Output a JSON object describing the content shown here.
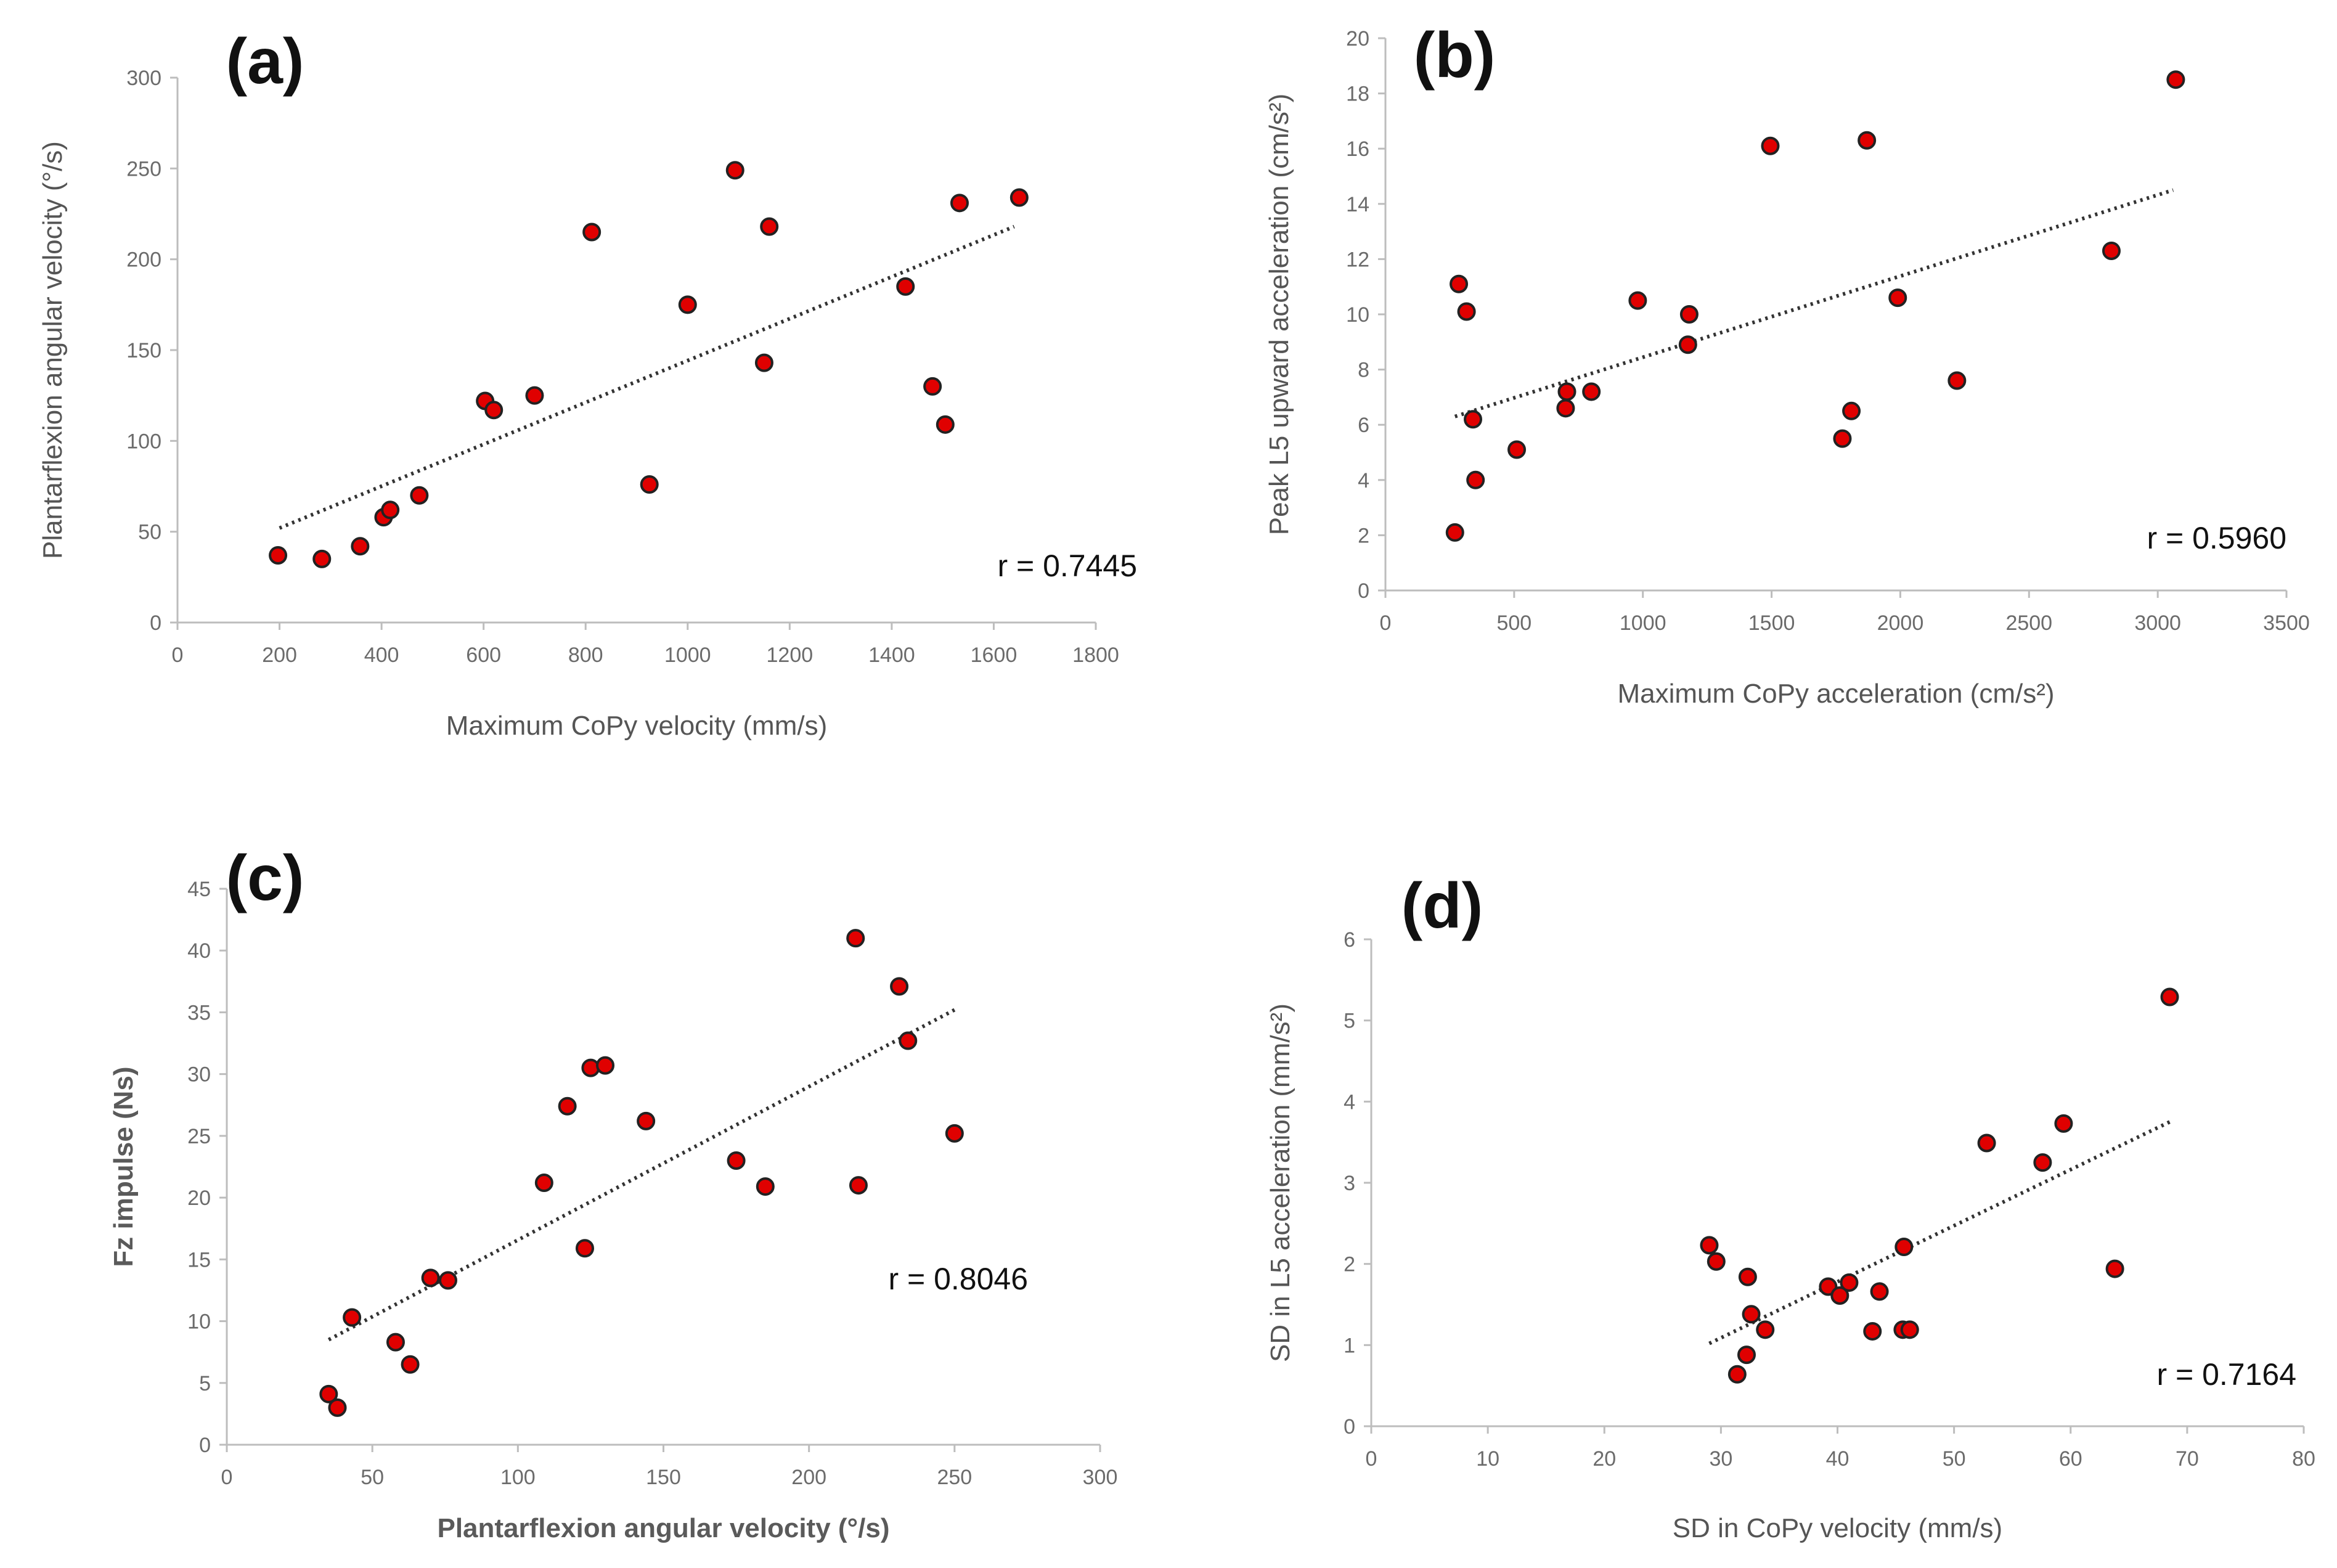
{
  "chart_data": [
    {
      "type": "scatter",
      "panel_label": "(a)",
      "xlabel": "Maximum CoPy velocity (mm/s)",
      "ylabel": "Plantarflexion angular velocity (°/s)",
      "xlim": [
        0,
        1800
      ],
      "ylim": [
        0,
        300
      ],
      "xticks": [
        0,
        200,
        400,
        600,
        800,
        1000,
        1200,
        1400,
        1600,
        1800
      ],
      "yticks": [
        0,
        50,
        100,
        150,
        200,
        250,
        300
      ],
      "annotation": "r = 0.7445",
      "trendline": {
        "x": [
          200,
          1640
        ],
        "y": [
          52,
          218
        ]
      },
      "points": [
        [
          197,
          37
        ],
        [
          283,
          35
        ],
        [
          358,
          42
        ],
        [
          404,
          58
        ],
        [
          417,
          62
        ],
        [
          474,
          70
        ],
        [
          603,
          122
        ],
        [
          620,
          117
        ],
        [
          700,
          125
        ],
        [
          812,
          215
        ],
        [
          925,
          76
        ],
        [
          1000,
          175
        ],
        [
          1093,
          249
        ],
        [
          1150,
          143
        ],
        [
          1160,
          218
        ],
        [
          1427,
          185
        ],
        [
          1480,
          130
        ],
        [
          1505,
          109
        ],
        [
          1533,
          231
        ],
        [
          1650,
          234
        ]
      ]
    },
    {
      "type": "scatter",
      "panel_label": "(b)",
      "xlabel": "Maximum CoPy acceleration (cm/s²)",
      "ylabel": "Peak L5 upward acceleration (cm/s²)",
      "xlim": [
        0,
        3500
      ],
      "ylim": [
        0,
        20
      ],
      "xticks": [
        0,
        500,
        1000,
        1500,
        2000,
        2500,
        3000,
        3500
      ],
      "yticks": [
        0,
        2,
        4,
        6,
        8,
        10,
        12,
        14,
        16,
        18,
        20
      ],
      "annotation": "r = 0.5960",
      "trendline": {
        "x": [
          270,
          3060
        ],
        "y": [
          6.3,
          14.5
        ]
      },
      "points": [
        [
          270,
          2.1
        ],
        [
          285,
          11.1
        ],
        [
          315,
          10.1
        ],
        [
          340,
          6.2
        ],
        [
          350,
          4.0
        ],
        [
          510,
          5.1
        ],
        [
          700,
          6.6
        ],
        [
          705,
          7.2
        ],
        [
          800,
          7.2
        ],
        [
          980,
          10.5
        ],
        [
          1175,
          8.9
        ],
        [
          1180,
          10.0
        ],
        [
          1495,
          16.1
        ],
        [
          1775,
          5.5
        ],
        [
          1810,
          6.5
        ],
        [
          1870,
          16.3
        ],
        [
          1990,
          10.6
        ],
        [
          2220,
          7.6
        ],
        [
          2820,
          12.3
        ],
        [
          3070,
          18.5
        ]
      ]
    },
    {
      "type": "scatter",
      "panel_label": "(c)",
      "xlabel": "Plantarflexion angular velocity (°/s)",
      "ylabel": "Fz impulse (Ns)",
      "xlim": [
        0,
        300
      ],
      "ylim": [
        0,
        45
      ],
      "xticks": [
        0,
        50,
        100,
        150,
        200,
        250,
        300
      ],
      "yticks": [
        0,
        5,
        10,
        15,
        20,
        25,
        30,
        35,
        40,
        45
      ],
      "annotation": "r = 0.8046",
      "trendline": {
        "x": [
          35,
          250
        ],
        "y": [
          8.5,
          35.2
        ]
      },
      "points": [
        [
          35,
          4.1
        ],
        [
          38,
          3.0
        ],
        [
          43,
          10.3
        ],
        [
          58,
          8.3
        ],
        [
          63,
          6.5
        ],
        [
          70,
          13.5
        ],
        [
          76,
          13.3
        ],
        [
          109,
          21.2
        ],
        [
          117,
          27.4
        ],
        [
          123,
          15.9
        ],
        [
          125,
          30.5
        ],
        [
          130,
          30.7
        ],
        [
          144,
          26.2
        ],
        [
          175,
          23.0
        ],
        [
          185,
          20.9
        ],
        [
          216,
          41.0
        ],
        [
          217,
          21.0
        ],
        [
          231,
          37.1
        ],
        [
          234,
          32.7
        ],
        [
          250,
          25.2
        ]
      ]
    },
    {
      "type": "scatter",
      "panel_label": "(d)",
      "xlabel": "SD in CoPy velocity (mm/s)",
      "ylabel": "SD in L5 acceleration (mm/s²)",
      "xlim": [
        0,
        80
      ],
      "ylim": [
        0,
        6
      ],
      "xticks": [
        0,
        10,
        20,
        30,
        40,
        50,
        60,
        70,
        80
      ],
      "yticks": [
        0,
        1,
        2,
        3,
        4,
        5,
        6
      ],
      "annotation": "r = 0.7164",
      "trendline": {
        "x": [
          29,
          68.5
        ],
        "y": [
          1.02,
          3.75
        ]
      },
      "points": [
        [
          29,
          2.23
        ],
        [
          29.6,
          2.03
        ],
        [
          31.4,
          0.64
        ],
        [
          32.2,
          0.88
        ],
        [
          32.3,
          1.84
        ],
        [
          32.6,
          1.38
        ],
        [
          33.8,
          1.19
        ],
        [
          39.2,
          1.72
        ],
        [
          40.2,
          1.61
        ],
        [
          41,
          1.77
        ],
        [
          43,
          1.17
        ],
        [
          43.6,
          1.66
        ],
        [
          45.6,
          1.19
        ],
        [
          45.7,
          2.21
        ],
        [
          46.2,
          1.19
        ],
        [
          52.8,
          3.49
        ],
        [
          57.6,
          3.25
        ],
        [
          59.4,
          3.73
        ],
        [
          63.8,
          1.94
        ],
        [
          68.5,
          5.29
        ]
      ]
    }
  ]
}
